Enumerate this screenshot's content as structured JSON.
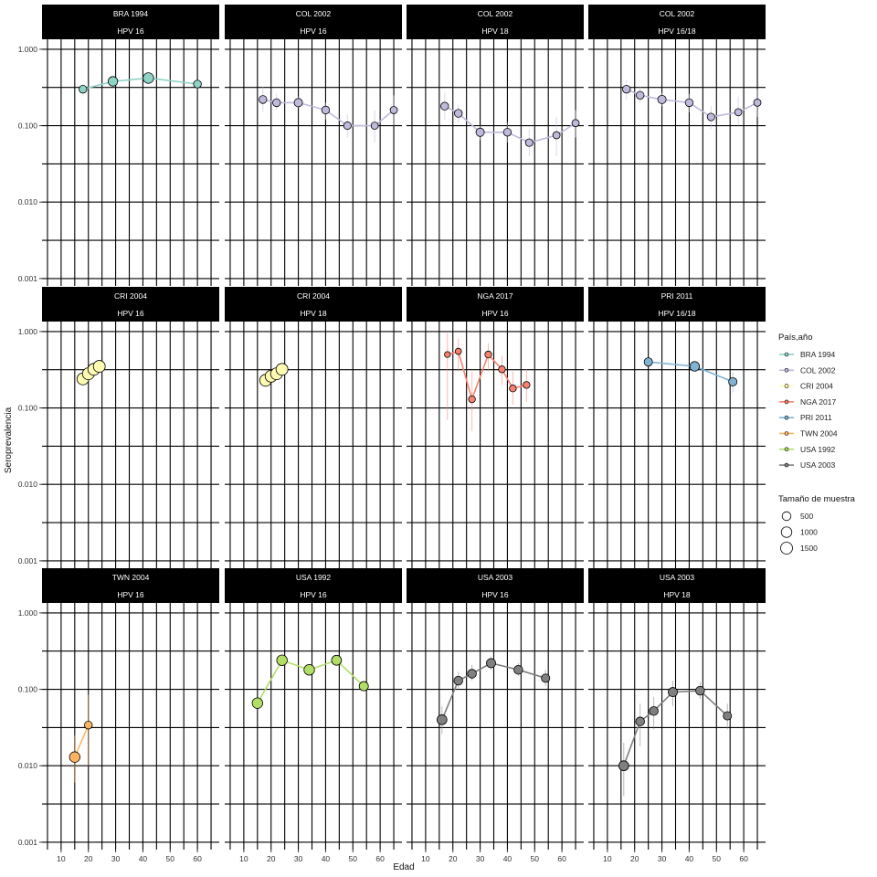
{
  "chart_data": {
    "type": "scatter",
    "subtype": "faceted line+point with error bars, log y",
    "xlabel": "Edad",
    "ylabel": "Seroprevalencia",
    "x_ticks": [
      10,
      20,
      30,
      40,
      50,
      60
    ],
    "y_ticks": [
      0.001,
      0.01,
      0.1,
      1
    ],
    "y_tick_labels": [
      "0.001",
      "0.010",
      "0.100",
      "1.000"
    ],
    "y_scale": "log10",
    "xlim": [
      3,
      68
    ],
    "ylim": [
      0.0008,
      1.35
    ],
    "grid": true,
    "legend_position": "right",
    "legend_color_title": "País,año",
    "legend_size_title": "Tamaño de muestra",
    "size_legend": [
      500,
      1000,
      1500
    ],
    "series": [
      {
        "name": "BRA 1994",
        "color": "#8fd3c7"
      },
      {
        "name": "COL 2002",
        "color": "#bebadb"
      },
      {
        "name": "CRI 2004",
        "color": "#fefbb3"
      },
      {
        "name": "NGA 2017",
        "color": "#f9826f"
      },
      {
        "name": "PRI 2011",
        "color": "#81b2d3"
      },
      {
        "name": "TWN 2004",
        "color": "#fdb562"
      },
      {
        "name": "USA 1992",
        "color": "#b2de68"
      },
      {
        "name": "USA 2003",
        "color": "#808080"
      }
    ],
    "facets": [
      {
        "line1": "BRA 1994",
        "line2": "HPV 16",
        "series": 0,
        "points": [
          {
            "x": 18,
            "y": 0.3,
            "lo": 0.25,
            "hi": 0.35,
            "n": 300
          },
          {
            "x": 29,
            "y": 0.38,
            "lo": 0.35,
            "hi": 0.42,
            "n": 700
          },
          {
            "x": 42,
            "y": 0.42,
            "lo": 0.38,
            "hi": 0.46,
            "n": 1000
          },
          {
            "x": 60,
            "y": 0.35,
            "lo": 0.3,
            "hi": 0.4,
            "n": 300
          }
        ]
      },
      {
        "line1": "COL 2002",
        "line2": "HPV 16",
        "series": 1,
        "points": [
          {
            "x": 17,
            "y": 0.22,
            "lo": 0.15,
            "hi": 0.32,
            "n": 300
          },
          {
            "x": 22,
            "y": 0.2,
            "lo": 0.16,
            "hi": 0.26,
            "n": 300
          },
          {
            "x": 30,
            "y": 0.2,
            "lo": 0.17,
            "hi": 0.24,
            "n": 400
          },
          {
            "x": 40,
            "y": 0.16,
            "lo": 0.12,
            "hi": 0.2,
            "n": 300
          },
          {
            "x": 48,
            "y": 0.1,
            "lo": 0.07,
            "hi": 0.14,
            "n": 250
          },
          {
            "x": 58,
            "y": 0.1,
            "lo": 0.06,
            "hi": 0.16,
            "n": 200
          },
          {
            "x": 65,
            "y": 0.16,
            "lo": 0.1,
            "hi": 0.25,
            "n": 200
          }
        ]
      },
      {
        "line1": "COL 2002",
        "line2": "HPV 18",
        "series": 1,
        "points": [
          {
            "x": 17,
            "y": 0.18,
            "lo": 0.12,
            "hi": 0.27,
            "n": 300
          },
          {
            "x": 22,
            "y": 0.145,
            "lo": 0.11,
            "hi": 0.19,
            "n": 300
          },
          {
            "x": 30,
            "y": 0.082,
            "lo": 0.065,
            "hi": 0.1,
            "n": 400
          },
          {
            "x": 40,
            "y": 0.082,
            "lo": 0.06,
            "hi": 0.11,
            "n": 300
          },
          {
            "x": 48,
            "y": 0.06,
            "lo": 0.04,
            "hi": 0.09,
            "n": 250
          },
          {
            "x": 58,
            "y": 0.075,
            "lo": 0.04,
            "hi": 0.13,
            "n": 200
          },
          {
            "x": 65,
            "y": 0.108,
            "lo": 0.07,
            "hi": 0.16,
            "n": 200
          }
        ]
      },
      {
        "line1": "COL 2002",
        "line2": "HPV 16/18",
        "series": 1,
        "points": [
          {
            "x": 17,
            "y": 0.3,
            "lo": 0.22,
            "hi": 0.4,
            "n": 300
          },
          {
            "x": 22,
            "y": 0.25,
            "lo": 0.2,
            "hi": 0.32,
            "n": 300
          },
          {
            "x": 30,
            "y": 0.22,
            "lo": 0.18,
            "hi": 0.27,
            "n": 400
          },
          {
            "x": 40,
            "y": 0.2,
            "lo": 0.15,
            "hi": 0.26,
            "n": 300
          },
          {
            "x": 48,
            "y": 0.13,
            "lo": 0.09,
            "hi": 0.18,
            "n": 250
          },
          {
            "x": 58,
            "y": 0.15,
            "lo": 0.1,
            "hi": 0.24,
            "n": 200
          },
          {
            "x": 65,
            "y": 0.2,
            "lo": 0.13,
            "hi": 0.3,
            "n": 200
          }
        ]
      },
      {
        "line1": "CRI 2004",
        "line2": "HPV 16",
        "series": 2,
        "points": [
          {
            "x": 18,
            "y": 0.24,
            "lo": 0.22,
            "hi": 0.27,
            "n": 1500
          },
          {
            "x": 20,
            "y": 0.28,
            "lo": 0.26,
            "hi": 0.31,
            "n": 1500
          },
          {
            "x": 22,
            "y": 0.32,
            "lo": 0.29,
            "hi": 0.35,
            "n": 1500
          },
          {
            "x": 24,
            "y": 0.35,
            "lo": 0.32,
            "hi": 0.38,
            "n": 1500
          }
        ]
      },
      {
        "line1": "CRI 2004",
        "line2": "HPV 18",
        "series": 2,
        "points": [
          {
            "x": 18,
            "y": 0.23,
            "lo": 0.21,
            "hi": 0.26,
            "n": 1500
          },
          {
            "x": 20,
            "y": 0.26,
            "lo": 0.24,
            "hi": 0.29,
            "n": 1500
          },
          {
            "x": 22,
            "y": 0.28,
            "lo": 0.26,
            "hi": 0.31,
            "n": 1500
          },
          {
            "x": 24,
            "y": 0.32,
            "lo": 0.29,
            "hi": 0.35,
            "n": 1500
          }
        ]
      },
      {
        "line1": "NGA 2017",
        "line2": "HPV 16",
        "series": 3,
        "points": [
          {
            "x": 18,
            "y": 0.5,
            "lo": 0.07,
            "hi": 0.95,
            "n": 50
          },
          {
            "x": 22,
            "y": 0.55,
            "lo": 0.3,
            "hi": 0.8,
            "n": 80
          },
          {
            "x": 27,
            "y": 0.13,
            "lo": 0.05,
            "hi": 0.3,
            "n": 150
          },
          {
            "x": 33,
            "y": 0.5,
            "lo": 0.3,
            "hi": 0.7,
            "n": 150
          },
          {
            "x": 38,
            "y": 0.32,
            "lo": 0.2,
            "hi": 0.48,
            "n": 150
          },
          {
            "x": 42,
            "y": 0.18,
            "lo": 0.11,
            "hi": 0.3,
            "n": 150
          },
          {
            "x": 47,
            "y": 0.2,
            "lo": 0.12,
            "hi": 0.32,
            "n": 150
          }
        ]
      },
      {
        "line1": "PRI 2011",
        "line2": "HPV 16/18",
        "series": 4,
        "points": [
          {
            "x": 25,
            "y": 0.4,
            "lo": 0.35,
            "hi": 0.45,
            "n": 400
          },
          {
            "x": 42,
            "y": 0.35,
            "lo": 0.31,
            "hi": 0.39,
            "n": 700
          },
          {
            "x": 56,
            "y": 0.22,
            "lo": 0.16,
            "hi": 0.29,
            "n": 400
          }
        ]
      },
      {
        "line1": "TWN 2004",
        "line2": "HPV 16",
        "series": 5,
        "points": [
          {
            "x": 15,
            "y": 0.013,
            "lo": 0.006,
            "hi": 0.025,
            "n": 1000
          },
          {
            "x": 20,
            "y": 0.034,
            "lo": 0.01,
            "hi": 0.085,
            "n": 300
          }
        ]
      },
      {
        "line1": "USA 1992",
        "line2": "HPV 16",
        "series": 6,
        "points": [
          {
            "x": 15,
            "y": 0.066,
            "lo": 0.058,
            "hi": 0.075,
            "n": 1000
          },
          {
            "x": 24,
            "y": 0.24,
            "lo": 0.22,
            "hi": 0.26,
            "n": 1000
          },
          {
            "x": 34,
            "y": 0.18,
            "lo": 0.165,
            "hi": 0.2,
            "n": 1000
          },
          {
            "x": 44,
            "y": 0.24,
            "lo": 0.22,
            "hi": 0.26,
            "n": 800
          },
          {
            "x": 54,
            "y": 0.11,
            "lo": 0.095,
            "hi": 0.125,
            "n": 600
          }
        ]
      },
      {
        "line1": "USA 2003",
        "line2": "HPV 16",
        "series": 7,
        "points": [
          {
            "x": 16,
            "y": 0.04,
            "lo": 0.026,
            "hi": 0.06,
            "n": 800
          },
          {
            "x": 22,
            "y": 0.13,
            "lo": 0.1,
            "hi": 0.17,
            "n": 500
          },
          {
            "x": 27,
            "y": 0.16,
            "lo": 0.13,
            "hi": 0.21,
            "n": 500
          },
          {
            "x": 34,
            "y": 0.22,
            "lo": 0.18,
            "hi": 0.27,
            "n": 600
          },
          {
            "x": 44,
            "y": 0.18,
            "lo": 0.15,
            "hi": 0.22,
            "n": 500
          },
          {
            "x": 54,
            "y": 0.14,
            "lo": 0.11,
            "hi": 0.18,
            "n": 400
          }
        ]
      },
      {
        "line1": "USA 2003",
        "line2": "HPV 18",
        "series": 7,
        "points": [
          {
            "x": 16,
            "y": 0.01,
            "lo": 0.004,
            "hi": 0.02,
            "n": 800
          },
          {
            "x": 22,
            "y": 0.038,
            "lo": 0.018,
            "hi": 0.065,
            "n": 500
          },
          {
            "x": 27,
            "y": 0.052,
            "lo": 0.03,
            "hi": 0.08,
            "n": 500
          },
          {
            "x": 34,
            "y": 0.092,
            "lo": 0.06,
            "hi": 0.13,
            "n": 600
          },
          {
            "x": 44,
            "y": 0.096,
            "lo": 0.075,
            "hi": 0.125,
            "n": 500
          },
          {
            "x": 54,
            "y": 0.045,
            "lo": 0.03,
            "hi": 0.065,
            "n": 400
          }
        ]
      }
    ]
  }
}
